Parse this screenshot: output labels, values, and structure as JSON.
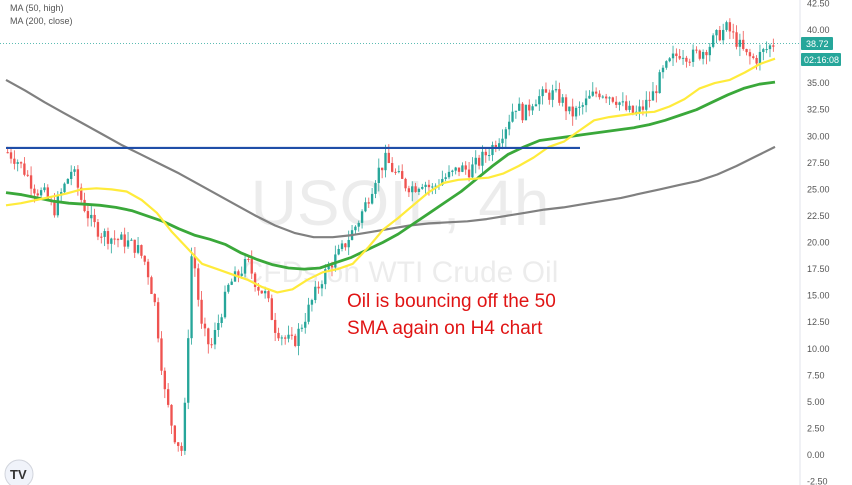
{
  "chart_data": {
    "type": "candlestick",
    "symbol": "USOIL",
    "timeframe": "4h",
    "watermark_sub": "CFDs on WTI Crude Oil",
    "legend": [
      {
        "label": "MA (50, high)",
        "color": "#ffeb3b"
      },
      {
        "label": "MA (200, close)",
        "color": "#808080"
      }
    ],
    "colors": {
      "up": "#26a69a",
      "down": "#ef5350",
      "ma_fast": "#ffeb3b",
      "ma_mid": "#3aa83a",
      "ma_slow": "#808080",
      "level": "#1f4ea8",
      "text": "#e01414"
    },
    "y_ticks": [
      "-2.50",
      "0.00",
      "2.50",
      "5.00",
      "7.50",
      "10.00",
      "12.50",
      "15.00",
      "17.50",
      "20.00",
      "22.50",
      "25.00",
      "27.50",
      "30.00",
      "32.50",
      "35.00",
      "37.50",
      "40.00",
      "42.50"
    ],
    "ylim": [
      -2.5,
      42.5
    ],
    "price_label": "38.72",
    "countdown_label": "02:16:08",
    "horizontal_level": 28.9,
    "annotation_line1": "Oil is bouncing off the 50",
    "annotation_line2": "SMA again on H4 chart",
    "close_path": [
      28.5,
      27.8,
      26.5,
      25,
      24.5,
      23,
      25,
      27,
      24,
      22,
      21,
      20.5,
      20.3,
      20,
      19.5,
      18,
      14,
      6,
      2,
      0.2,
      20,
      12,
      10,
      13,
      16,
      17,
      18.2,
      16,
      15,
      12,
      11,
      10.5,
      12.5,
      14.5,
      16.5,
      18,
      19,
      20.5,
      22,
      24,
      26.5,
      27.8,
      26.5,
      25.5,
      25.2,
      25.8,
      25,
      26,
      26.3,
      27,
      26.8,
      27.5,
      28.5,
      29.5,
      31,
      33,
      32,
      33.5,
      33.8,
      34,
      33.5,
      32,
      32.5,
      33.5,
      34.2,
      34,
      33.5,
      32.5,
      32,
      32.8,
      34,
      36,
      37.2,
      38,
      37.5,
      37.8,
      38.5,
      39.5,
      40.2,
      39,
      37.6,
      37.2,
      38,
      38.72
    ],
    "ma_fast": [
      23.5,
      23.7,
      24,
      24.3,
      24.6,
      25,
      25.1,
      25,
      24.8,
      24,
      22.8,
      21,
      19.5,
      18,
      17.5,
      17,
      16.5,
      15.8,
      15.3,
      15.6,
      16.5,
      17.2,
      17.5,
      18,
      19.5,
      21.2,
      22.3,
      23.5,
      24.7,
      25.6,
      25.9,
      26,
      26.1,
      26.5,
      27.2,
      28,
      29,
      29.5,
      30.5,
      31.5,
      31.8,
      32,
      32.2,
      32.3,
      32.8,
      33.5,
      34.5,
      35,
      35.3,
      36,
      36.8,
      37.3
    ],
    "ma_mid": [
      24.7,
      24.5,
      24.2,
      23.9,
      23.7,
      23.6,
      23.5,
      23.3,
      23,
      22.5,
      22,
      21.3,
      20.7,
      20.3,
      19.8,
      19,
      18.4,
      17.9,
      17.6,
      17.5,
      17.6,
      18.1,
      18.6,
      19.3,
      20,
      20.8,
      21.8,
      22.8,
      23.8,
      24.8,
      26,
      27.2,
      28.3,
      29,
      29.6,
      29.8,
      30,
      30.2,
      30.4,
      30.6,
      30.8,
      31.1,
      31.5,
      32,
      32.5,
      33.2,
      33.9,
      34.5,
      34.9,
      35.1
    ],
    "ma_slow": [
      35.3,
      34.3,
      33.2,
      32.2,
      31.2,
      30.2,
      29.2,
      28.3,
      27.4,
      26.5,
      25.5,
      24.5,
      23.5,
      22.5,
      21.6,
      20.9,
      20.5,
      20.5,
      20.7,
      21,
      21.3,
      21.6,
      21.8,
      21.9,
      22,
      22.2,
      22.5,
      22.8,
      23.1,
      23.3,
      23.6,
      23.9,
      24.2,
      24.6,
      25,
      25.4,
      25.8,
      26.4,
      27.2,
      28.1,
      29
    ]
  }
}
